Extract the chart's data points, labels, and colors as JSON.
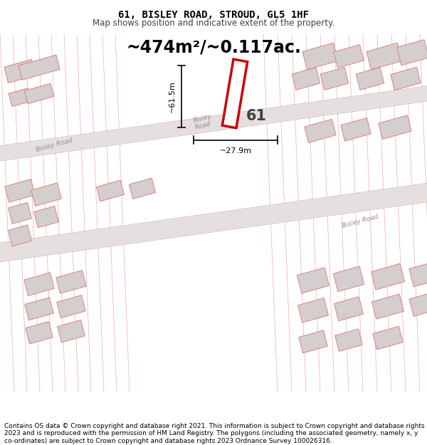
{
  "title": "61, BISLEY ROAD, STROUD, GL5 1HF",
  "subtitle": "Map shows position and indicative extent of the property.",
  "area_text": "~474m²/~0.117ac.",
  "label_61": "61",
  "dim_vertical": "~61.5m",
  "dim_horizontal": "~27.9m",
  "bg_color": "#ffffff",
  "map_bg": "#faf5f5",
  "road_color": "#e8e0e0",
  "building_fill": "#d4cece",
  "building_edge": "#e07070",
  "line_color": "#e07070",
  "highlight_color": "#cc0000",
  "black": "#000000",
  "dark_gray": "#404040",
  "road_label_color": "#909090",
  "copyright_text": "Contains OS data © Crown copyright and database right 2021. This information is subject to Crown copyright and database rights 2023 and is reproduced with the permission of HM Land Registry. The polygons (including the associated geometry, namely x, y co-ordinates) are subject to Crown copyright and database rights 2023 Ordnance Survey 100026316.",
  "title_fontsize": 10,
  "subtitle_fontsize": 8.5,
  "area_fontsize": 17,
  "label_fontsize": 15,
  "dim_fontsize": 8,
  "copyright_fontsize": 6.5
}
